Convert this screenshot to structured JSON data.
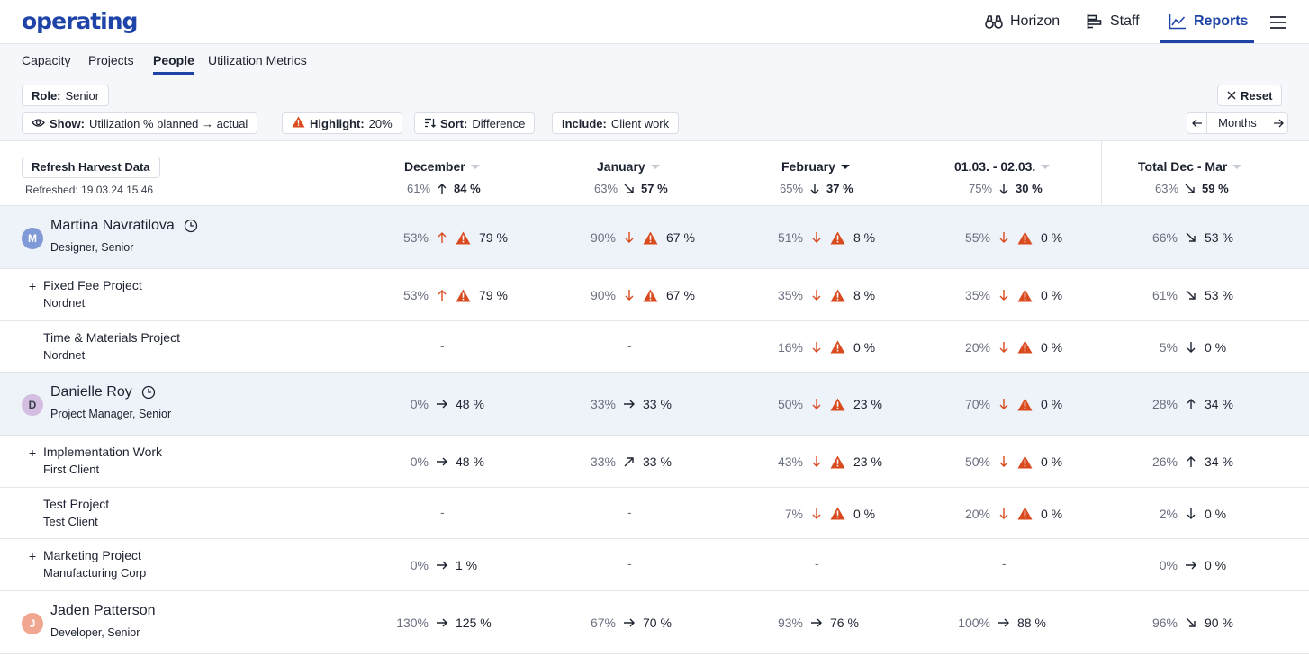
{
  "app": {
    "logo": "operating",
    "nav": [
      {
        "label": "Horizon",
        "icon": "binoculars-icon"
      },
      {
        "label": "Staff",
        "icon": "staff-bars-icon"
      },
      {
        "label": "Reports",
        "icon": "line-chart-icon",
        "active": true
      }
    ],
    "accent": "#1f44a8"
  },
  "subnav": {
    "tabs": [
      {
        "label": "Capacity"
      },
      {
        "label": "Projects"
      },
      {
        "label": "People",
        "active": true
      },
      {
        "label": "Utilization Metrics"
      }
    ]
  },
  "filters": {
    "role_key": "Role:",
    "role_value": "Senior",
    "show_key": "Show:",
    "show_value": "Utilization % planned → actual",
    "highlight_key": "Highlight:",
    "highlight_value": "20%",
    "sort_key": "Sort:",
    "sort_value": "Difference",
    "include_key": "Include:",
    "include_value": "Client work",
    "reset_label": "Reset",
    "period_label": "Months"
  },
  "table": {
    "refresh_label": "Refresh Harvest Data",
    "refreshed_text": "Refreshed: 19.03.24 15.46",
    "columns": [
      {
        "label": "December",
        "planned": "61%",
        "arrow": "up",
        "actual": "84 %",
        "sorted": false
      },
      {
        "label": "January",
        "planned": "63%",
        "arrow": "down-right",
        "actual": "57 %",
        "sorted": false
      },
      {
        "label": "February",
        "planned": "65%",
        "arrow": "down",
        "actual": "37 %",
        "sorted": true
      },
      {
        "label": "01.03. - 02.03.",
        "planned": "75%",
        "arrow": "down",
        "actual": "30 %",
        "sorted": false
      },
      {
        "label": "Total Dec - Mar",
        "planned": "63%",
        "arrow": "down-right",
        "actual": "59 %",
        "sorted": false
      }
    ],
    "rows": [
      {
        "type": "person",
        "initial": "M",
        "avatar_color": "#7f9ad6",
        "name": "Martina Navratilova",
        "subtitle": "Designer, Senior",
        "clock": true,
        "cells": [
          {
            "planned": "53%",
            "arrow": "up",
            "warn": true,
            "actual": "79 %"
          },
          {
            "planned": "90%",
            "arrow": "down",
            "warn": true,
            "actual": "67 %"
          },
          {
            "planned": "51%",
            "arrow": "down",
            "warn": true,
            "actual": "8 %"
          },
          {
            "planned": "55%",
            "arrow": "down",
            "warn": true,
            "actual": "0 %"
          },
          {
            "planned": "66%",
            "arrow": "down-right",
            "warn": false,
            "actual": "53 %"
          }
        ]
      },
      {
        "type": "project",
        "toggle": "+",
        "name": "Fixed Fee Project",
        "client": "Nordnet",
        "cells": [
          {
            "planned": "53%",
            "arrow": "up",
            "warn": true,
            "actual": "79 %"
          },
          {
            "planned": "90%",
            "arrow": "down",
            "warn": true,
            "actual": "67 %"
          },
          {
            "planned": "35%",
            "arrow": "down",
            "warn": true,
            "actual": "8 %"
          },
          {
            "planned": "35%",
            "arrow": "down",
            "warn": true,
            "actual": "0 %"
          },
          {
            "planned": "61%",
            "arrow": "down-right",
            "warn": false,
            "actual": "53 %"
          }
        ]
      },
      {
        "type": "project",
        "toggle": "",
        "name": "Time & Materials Project",
        "client": "Nordnet",
        "cells": [
          {
            "dash": "-"
          },
          {
            "dash": "-"
          },
          {
            "planned": "16%",
            "arrow": "down",
            "warn": true,
            "actual": "0 %"
          },
          {
            "planned": "20%",
            "arrow": "down",
            "warn": true,
            "actual": "0 %"
          },
          {
            "planned": "5%",
            "arrow": "down",
            "warn": false,
            "actual": "0 %"
          }
        ]
      },
      {
        "type": "person",
        "initial": "D",
        "avatar_color": "#d3bde0",
        "avatar_text": "#3a3f4c",
        "name": "Danielle Roy",
        "subtitle": "Project Manager, Senior",
        "clock": true,
        "cells": [
          {
            "planned": "0%",
            "arrow": "right",
            "warn": false,
            "actual": "48 %"
          },
          {
            "planned": "33%",
            "arrow": "right",
            "warn": false,
            "actual": "33 %"
          },
          {
            "planned": "50%",
            "arrow": "down",
            "warn": true,
            "actual": "23 %"
          },
          {
            "planned": "70%",
            "arrow": "down",
            "warn": true,
            "actual": "0 %"
          },
          {
            "planned": "28%",
            "arrow": "up",
            "warn": false,
            "actual": "34 %"
          }
        ]
      },
      {
        "type": "project",
        "toggle": "+",
        "name": "Implementation Work",
        "client": "First Client",
        "cells": [
          {
            "planned": "0%",
            "arrow": "right",
            "warn": false,
            "actual": "48 %"
          },
          {
            "planned": "33%",
            "arrow": "up-right",
            "warn": false,
            "actual": "33 %"
          },
          {
            "planned": "43%",
            "arrow": "down",
            "warn": true,
            "actual": "23 %"
          },
          {
            "planned": "50%",
            "arrow": "down",
            "warn": true,
            "actual": "0 %"
          },
          {
            "planned": "26%",
            "arrow": "up",
            "warn": false,
            "actual": "34 %"
          }
        ]
      },
      {
        "type": "project",
        "toggle": "",
        "name": "Test Project",
        "client": "Test Client",
        "cells": [
          {
            "dash": "-"
          },
          {
            "dash": "-"
          },
          {
            "planned": "7%",
            "arrow": "down",
            "warn": true,
            "actual": "0 %"
          },
          {
            "planned": "20%",
            "arrow": "down",
            "warn": true,
            "actual": "0 %"
          },
          {
            "planned": "2%",
            "arrow": "down",
            "warn": false,
            "actual": "0 %"
          }
        ]
      },
      {
        "type": "project",
        "toggle": "+",
        "name": "Marketing Project",
        "client": "Manufacturing Corp",
        "cells": [
          {
            "planned": "0%",
            "arrow": "right",
            "warn": false,
            "actual": "1 %"
          },
          {
            "dash": "-"
          },
          {
            "dash": "-"
          },
          {
            "dash": "-"
          },
          {
            "planned": "0%",
            "arrow": "right",
            "warn": false,
            "actual": "0 %"
          }
        ]
      },
      {
        "type": "person",
        "plain": true,
        "initial": "J",
        "avatar_color": "#f0a68f",
        "name": "Jaden Patterson",
        "subtitle": "Developer, Senior",
        "clock": false,
        "cells": [
          {
            "planned": "130%",
            "arrow": "right",
            "warn": false,
            "actual": "125 %"
          },
          {
            "planned": "67%",
            "arrow": "right",
            "warn": false,
            "actual": "70 %"
          },
          {
            "planned": "93%",
            "arrow": "right",
            "warn": false,
            "actual": "76 %"
          },
          {
            "planned": "100%",
            "arrow": "right",
            "warn": false,
            "actual": "88 %"
          },
          {
            "planned": "96%",
            "arrow": "down-right",
            "warn": false,
            "actual": "90 %"
          }
        ]
      }
    ],
    "colors": {
      "warn": "#d94a1e",
      "alert_arrow": "#d94a1e",
      "neutral_arrow": "#1d2230"
    }
  }
}
